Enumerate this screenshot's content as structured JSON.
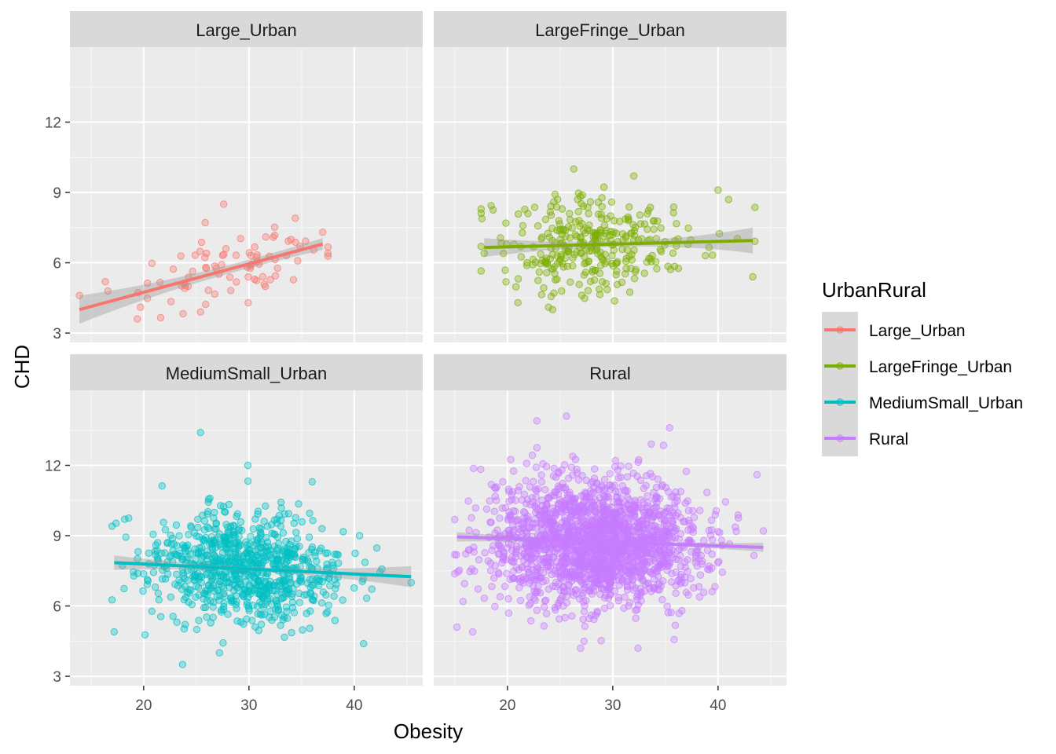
{
  "chart_data": {
    "type": "scatter",
    "title": "",
    "xlabel": "Obesity",
    "ylabel": "CHD",
    "xlim": [
      13,
      46.5
    ],
    "ylim": [
      2.6,
      15.2
    ],
    "x_ticks": [
      20,
      30,
      40
    ],
    "y_ticks": [
      3,
      6,
      9,
      12
    ],
    "grid": true,
    "facet_layout": "2x2",
    "legend": {
      "title": "UrbanRural",
      "placement": "right",
      "items": [
        {
          "label": "Large_Urban",
          "color": "#F8766D"
        },
        {
          "label": "LargeFringe_Urban",
          "color": "#7CAE00"
        },
        {
          "label": "MediumSmall_Urban",
          "color": "#00BFC4"
        },
        {
          "label": "Rural",
          "color": "#C77CFF"
        }
      ]
    },
    "panels": [
      {
        "name": "Large_Urban",
        "color": "#F8766D",
        "trend": {
          "x": [
            13.9,
            37.0
          ],
          "y": [
            4.0,
            6.8
          ]
        },
        "band": {
          "x": [
            13.9,
            37.0
          ],
          "lower": [
            3.4,
            6.3
          ],
          "upper": [
            4.6,
            7.3
          ],
          "center_x": 29.5,
          "center_half_width": 0.18
        },
        "sample": {
          "n": 80,
          "x_center": 28.5,
          "x_sd": 4.8,
          "x_min": 14,
          "x_max": 37.5,
          "y_sd": 0.75,
          "y_min": 3.5,
          "y_max": 9
        },
        "points": [
          [
            13.9,
            4.6
          ],
          [
            19.4,
            3.6
          ],
          [
            19.7,
            4.1
          ],
          [
            27.6,
            8.5
          ],
          [
            34.4,
            7.9
          ],
          [
            37.0,
            7.3
          ],
          [
            25.4,
            3.9
          ],
          [
            31.6,
            7.1
          ]
        ]
      },
      {
        "name": "LargeFringe_Urban",
        "color": "#7CAE00",
        "trend": {
          "x": [
            17.8,
            43.3
          ],
          "y": [
            6.65,
            6.95
          ]
        },
        "band": {
          "x": [
            17.8,
            43.3
          ],
          "lower": [
            6.2,
            6.45
          ],
          "upper": [
            7.05,
            7.5
          ],
          "center_x": 30,
          "center_half_width": 0.12
        },
        "sample": {
          "n": 320,
          "x_center": 28.5,
          "x_sd": 4.8,
          "x_min": 17.5,
          "x_max": 43.5,
          "y_sd": 1.05,
          "y_min": 4.0,
          "y_max": 10.2
        },
        "points": [
          [
            17.8,
            6.4
          ],
          [
            43.3,
            5.4
          ],
          [
            26.3,
            10.0
          ],
          [
            40.0,
            9.1
          ],
          [
            21.0,
            4.3
          ],
          [
            23.9,
            4.1
          ],
          [
            32.0,
            9.7
          ],
          [
            41.0,
            8.7
          ]
        ]
      },
      {
        "name": "MediumSmall_Urban",
        "color": "#00BFC4",
        "trend": {
          "x": [
            17.2,
            45.4
          ],
          "y": [
            7.85,
            7.25
          ]
        },
        "band": {
          "x": [
            17.2,
            45.4
          ],
          "lower": [
            7.45,
            6.85
          ],
          "upper": [
            8.25,
            7.7
          ],
          "center_x": 30,
          "center_half_width": 0.1
        },
        "sample": {
          "n": 820,
          "x_center": 29.5,
          "x_sd": 4.5,
          "x_min": 17,
          "x_max": 45.5,
          "y_sd": 1.15,
          "y_min": 3.5,
          "y_max": 13.5
        },
        "points": [
          [
            17.2,
            4.9
          ],
          [
            45.4,
            7.0
          ],
          [
            25.4,
            13.4
          ],
          [
            23.7,
            3.5
          ],
          [
            27.2,
            4.0
          ],
          [
            29.9,
            12.0
          ],
          [
            36.0,
            11.3
          ],
          [
            18.2,
            9.7
          ]
        ]
      },
      {
        "name": "Rural",
        "color": "#C77CFF",
        "trend": {
          "x": [
            15.2,
            44.3
          ],
          "y": [
            8.95,
            8.5
          ]
        },
        "band": {
          "x": [
            15.2,
            44.3
          ],
          "lower": [
            8.75,
            8.3
          ],
          "upper": [
            9.15,
            8.7
          ],
          "center_x": 30,
          "center_half_width": 0.05
        },
        "sample": {
          "n": 1900,
          "x_center": 28.5,
          "x_sd": 4.8,
          "x_min": 15,
          "x_max": 44.5,
          "y_sd": 1.3,
          "y_min": 4.2,
          "y_max": 14.1
        },
        "points": [
          [
            15.2,
            5.1
          ],
          [
            44.3,
            9.2
          ],
          [
            25.6,
            14.1
          ],
          [
            22.8,
            13.9
          ],
          [
            32.4,
            4.2
          ],
          [
            35.4,
            13.6
          ],
          [
            43.7,
            11.6
          ],
          [
            16.7,
            4.9
          ]
        ]
      }
    ]
  }
}
